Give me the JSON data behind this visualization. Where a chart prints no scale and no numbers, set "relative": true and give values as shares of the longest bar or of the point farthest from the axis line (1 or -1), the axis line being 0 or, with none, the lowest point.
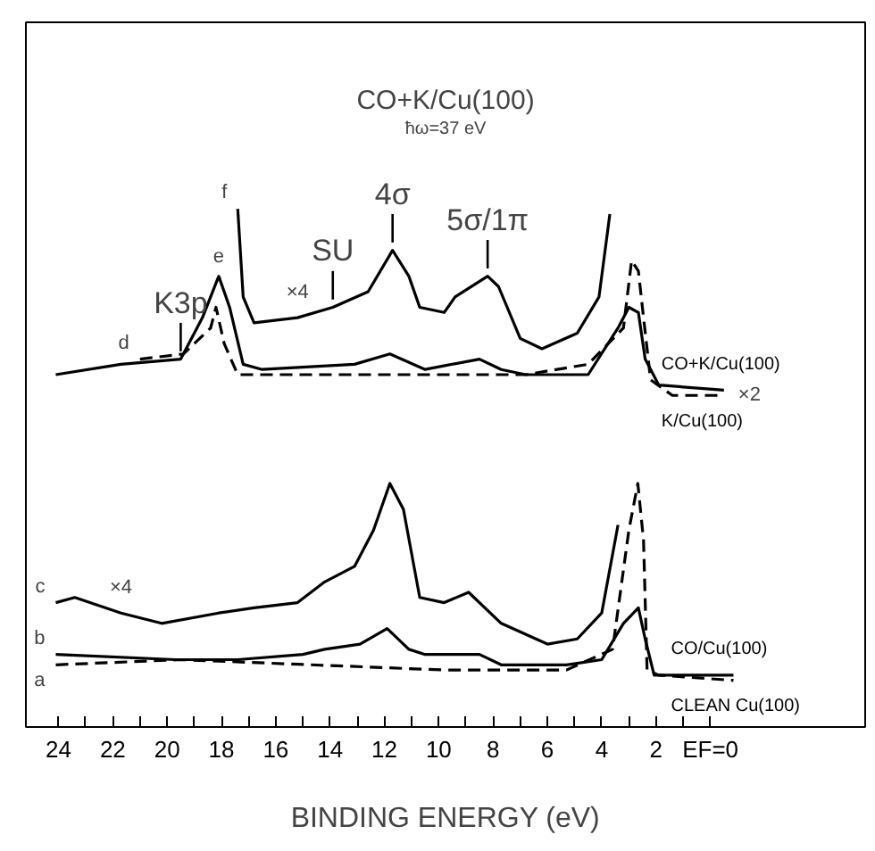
{
  "chart_data": {
    "type": "line",
    "title": "CO+K/Cu(100)",
    "subtitle": "ħω=37 eV",
    "xlabel": "BINDING ENERGY (eV)",
    "relative": true,
    "grid": false,
    "marker": "none",
    "line_style": "solid",
    "tick_labels": "x",
    "xlim": [
      25.2,
      -5.7
    ],
    "xticks": [
      24,
      {
        "value": 23,
        "label": null
      },
      22,
      {
        "value": 21,
        "label": null
      },
      20,
      {
        "value": 19,
        "label": null
      },
      18,
      {
        "value": 17,
        "label": null
      },
      16,
      {
        "value": 15,
        "label": null
      },
      14,
      {
        "value": 13,
        "label": null
      },
      12,
      {
        "value": 11,
        "label": null
      },
      10,
      {
        "value": 9,
        "label": null
      },
      8,
      {
        "value": 7,
        "label": null
      },
      6,
      {
        "value": 5,
        "label": null
      },
      4,
      {
        "value": 3,
        "label": null
      },
      2,
      {
        "value": 1,
        "label": null
      },
      {
        "value": 0,
        "label": "EF=0"
      }
    ],
    "series": [
      {
        "name": "CLEAN Cu(100)",
        "color": "#000000",
        "line_style": "dashed",
        "x": [
          24.1,
          19.5,
          9.8,
          5.3,
          3.6,
          3.0,
          2.67,
          2.46,
          2.33,
          1.9,
          -0.85
        ],
        "values": [
          0.12,
          0.13,
          0.11,
          0.11,
          0.15,
          0.38,
          0.47,
          0.36,
          0.11,
          0.1,
          0.09
        ]
      },
      {
        "name": "CO/Cu(100)",
        "color": "#000000",
        "x": [
          24.1,
          19.7,
          19.3,
          17.4,
          15.0,
          14.2,
          12.9,
          11.9,
          11.1,
          10.5,
          8.5,
          7.7,
          5.3,
          4.0,
          3.2,
          2.65,
          2.4,
          2.07,
          -0.85
        ],
        "values": [
          0.14,
          0.13,
          0.13,
          0.13,
          0.14,
          0.15,
          0.16,
          0.19,
          0.15,
          0.14,
          0.14,
          0.12,
          0.12,
          0.13,
          0.2,
          0.23,
          0.17,
          0.1,
          0.1
        ]
      },
      {
        "color": "#000000",
        "x": [
          24.1,
          23.4,
          21.7,
          20.2,
          18.1,
          16.8,
          15.2,
          14.2,
          13.1,
          12.4,
          11.8,
          11.3,
          10.7,
          9.8,
          8.9,
          7.7,
          6.0,
          4.9,
          4.0,
          3.4
        ],
        "values": [
          0.24,
          0.25,
          0.22,
          0.2,
          0.22,
          0.23,
          0.24,
          0.28,
          0.31,
          0.38,
          0.47,
          0.42,
          0.25,
          0.24,
          0.26,
          0.2,
          0.16,
          0.17,
          0.22,
          0.39
        ]
      },
      {
        "name": "K/Cu(100)",
        "color": "#000000",
        "line_style": "dashed",
        "x": [
          21.0,
          19.4,
          18.4,
          18.2,
          17.9,
          17.4,
          9.8,
          6.8,
          4.5,
          3.2,
          2.9,
          2.65,
          2.46,
          2.2,
          1.4,
          -0.5
        ],
        "values": [
          0.71,
          0.72,
          0.77,
          0.81,
          0.74,
          0.68,
          0.68,
          0.68,
          0.7,
          0.77,
          0.9,
          0.88,
          0.79,
          0.67,
          0.64,
          0.64
        ]
      },
      {
        "name": "CO+K/Cu(100)",
        "color": "#000000",
        "x": [
          24.1,
          21.7,
          19.5,
          18.7,
          18.1,
          17.7,
          17.2,
          16.5,
          13.1,
          11.8,
          10.5,
          8.5,
          7.7,
          6.8,
          4.5,
          3.4,
          3.0,
          2.65,
          2.4,
          1.9,
          -0.5
        ],
        "values": [
          0.68,
          0.7,
          0.71,
          0.79,
          0.87,
          0.81,
          0.7,
          0.69,
          0.7,
          0.72,
          0.69,
          0.71,
          0.69,
          0.68,
          0.68,
          0.77,
          0.81,
          0.8,
          0.71,
          0.66,
          0.65
        ]
      },
      {
        "color": "#000000",
        "x": [
          17.4,
          17.2,
          16.8,
          15.2,
          13.9,
          12.6,
          11.7,
          11.1,
          10.7,
          9.8,
          9.4,
          8.2,
          7.8,
          7.0,
          6.2,
          4.9,
          4.1,
          3.7
        ],
        "values": [
          1.0,
          0.83,
          0.78,
          0.79,
          0.81,
          0.84,
          0.92,
          0.87,
          0.81,
          0.8,
          0.83,
          0.87,
          0.85,
          0.75,
          0.73,
          0.76,
          0.83,
          0.99
        ]
      }
    ],
    "annotations": [
      {
        "text": "a",
        "x": 24.1,
        "y": 0.12
      },
      {
        "text": "b",
        "x": 24.1,
        "y": 0.14
      },
      {
        "text": "c",
        "x": 24.1,
        "y": 0.24
      },
      {
        "text": "×4",
        "x": 21.7,
        "y": 0.22
      },
      {
        "text": "d",
        "x": 21.0,
        "y": 0.71
      },
      {
        "text": "e",
        "x": 18.1,
        "y": 0.87
      },
      {
        "text": "f",
        "x": 17.4,
        "y": 1.0
      },
      {
        "text": "×4",
        "x": 15.2,
        "y": 0.79
      },
      {
        "text": "×2",
        "x": -0.5,
        "y": 0.64
      },
      {
        "text": "K3p",
        "x": 19.5,
        "y": 0.71
      },
      {
        "text": "SU",
        "x": 13.9,
        "y": 0.81
      },
      {
        "text": "4σ",
        "x": 11.7,
        "y": 0.92
      },
      {
        "text": "5σ/1π",
        "x": 8.2,
        "y": 0.87
      }
    ]
  }
}
